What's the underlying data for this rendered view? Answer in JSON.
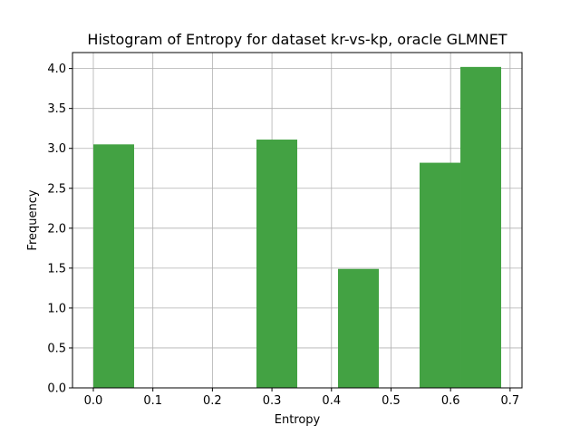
{
  "chart_data": {
    "type": "bar",
    "title": "Histogram of Entropy for dataset kr-vs-kp, oracle GLMNET",
    "xlabel": "Entropy",
    "ylabel": "Frequency",
    "bar_color": "#43a243",
    "grid": true,
    "xlim": [
      -0.035,
      0.72
    ],
    "ylim": [
      0,
      4.2
    ],
    "xticks": [
      0.0,
      0.1,
      0.2,
      0.3,
      0.4,
      0.5,
      0.6,
      0.7
    ],
    "xtick_labels": [
      "0.0",
      "0.1",
      "0.2",
      "0.3",
      "0.4",
      "0.5",
      "0.6",
      "0.7"
    ],
    "yticks": [
      0.0,
      0.5,
      1.0,
      1.5,
      2.0,
      2.5,
      3.0,
      3.5,
      4.0
    ],
    "ytick_labels": [
      "0.0",
      "0.5",
      "1.0",
      "1.5",
      "2.0",
      "2.5",
      "3.0",
      "3.5",
      "4.0"
    ],
    "bins": [
      {
        "x0": 0.0,
        "x1": 0.0685,
        "value": 3.05
      },
      {
        "x0": 0.0685,
        "x1": 0.137,
        "value": 0
      },
      {
        "x0": 0.137,
        "x1": 0.2055,
        "value": 0
      },
      {
        "x0": 0.2055,
        "x1": 0.274,
        "value": 0
      },
      {
        "x0": 0.274,
        "x1": 0.3425,
        "value": 3.11
      },
      {
        "x0": 0.3425,
        "x1": 0.411,
        "value": 0
      },
      {
        "x0": 0.411,
        "x1": 0.4795,
        "value": 1.49
      },
      {
        "x0": 0.4795,
        "x1": 0.548,
        "value": 0
      },
      {
        "x0": 0.548,
        "x1": 0.6165,
        "value": 2.82
      },
      {
        "x0": 0.6165,
        "x1": 0.685,
        "value": 4.02
      }
    ]
  }
}
